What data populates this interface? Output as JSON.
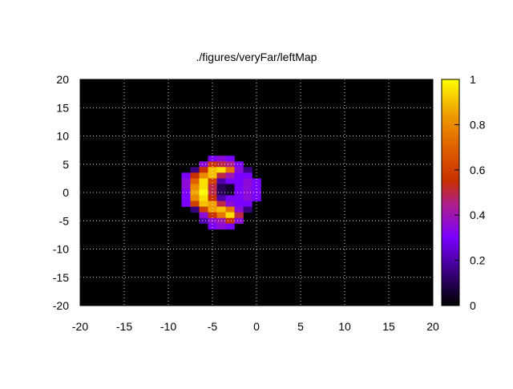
{
  "chart_data": {
    "type": "heatmap",
    "title": "./figures/veryFar/leftMap",
    "xlabel": "",
    "ylabel": "",
    "xlim": [
      -20,
      20
    ],
    "ylim": [
      -20,
      20
    ],
    "x_ticks": [
      -20,
      -15,
      -10,
      -5,
      0,
      5,
      10,
      15,
      20
    ],
    "y_ticks": [
      -20,
      -15,
      -10,
      -5,
      0,
      5,
      10,
      15,
      20
    ],
    "cell_size": 1,
    "grid": true,
    "background_value": 0,
    "colorbar": {
      "range": [
        0,
        1
      ],
      "ticks": [
        0,
        0.2,
        0.4,
        0.6,
        0.8,
        1
      ],
      "tick_labels": [
        "0",
        "0.2",
        "0.4",
        "0.6",
        "0.8",
        "1"
      ],
      "palette_stops": [
        {
          "v": 0.0,
          "color": "#000000"
        },
        {
          "v": 0.15,
          "color": "#3a0080"
        },
        {
          "v": 0.3,
          "color": "#7a00ff"
        },
        {
          "v": 0.45,
          "color": "#b0208a"
        },
        {
          "v": 0.55,
          "color": "#c83000"
        },
        {
          "v": 0.7,
          "color": "#e06000"
        },
        {
          "v": 0.85,
          "color": "#f0a000"
        },
        {
          "v": 1.0,
          "color": "#ffff00"
        }
      ]
    },
    "cells": [
      {
        "x": -5,
        "y": 6,
        "v": 0.3
      },
      {
        "x": -4,
        "y": 6,
        "v": 0.35
      },
      {
        "x": -3,
        "y": 6,
        "v": 0.3
      },
      {
        "x": -6,
        "y": 5,
        "v": 0.35
      },
      {
        "x": -5,
        "y": 5,
        "v": 0.55
      },
      {
        "x": -4,
        "y": 5,
        "v": 0.5
      },
      {
        "x": -3,
        "y": 5,
        "v": 0.45
      },
      {
        "x": -2,
        "y": 5,
        "v": 0.3
      },
      {
        "x": -7,
        "y": 4,
        "v": 0.15
      },
      {
        "x": -6,
        "y": 4,
        "v": 0.55
      },
      {
        "x": -5,
        "y": 4,
        "v": 0.9
      },
      {
        "x": -4,
        "y": 4,
        "v": 0.95
      },
      {
        "x": -3,
        "y": 4,
        "v": 0.75
      },
      {
        "x": -2,
        "y": 4,
        "v": 0.35
      },
      {
        "x": -1,
        "y": 4,
        "v": 0.15
      },
      {
        "x": -8,
        "y": 3,
        "v": 0.3
      },
      {
        "x": -7,
        "y": 3,
        "v": 0.55
      },
      {
        "x": -6,
        "y": 3,
        "v": 0.8
      },
      {
        "x": -5,
        "y": 3,
        "v": 0.9
      },
      {
        "x": -4,
        "y": 3,
        "v": 0.5
      },
      {
        "x": -3,
        "y": 3,
        "v": 0.4
      },
      {
        "x": -2,
        "y": 3,
        "v": 0.3
      },
      {
        "x": -1,
        "y": 3,
        "v": 0.3
      },
      {
        "x": -8,
        "y": 2,
        "v": 0.35
      },
      {
        "x": -7,
        "y": 2,
        "v": 0.7
      },
      {
        "x": -6,
        "y": 2,
        "v": 0.95
      },
      {
        "x": -5,
        "y": 2,
        "v": 0.6
      },
      {
        "x": -4,
        "y": 2,
        "v": 0.2
      },
      {
        "x": -3,
        "y": 2,
        "v": 0.3
      },
      {
        "x": -2,
        "y": 2,
        "v": 0.3
      },
      {
        "x": -1,
        "y": 2,
        "v": 0.35
      },
      {
        "x": 0,
        "y": 2,
        "v": 0.3
      },
      {
        "x": -8,
        "y": 1,
        "v": 0.35
      },
      {
        "x": -7,
        "y": 1,
        "v": 0.8
      },
      {
        "x": -6,
        "y": 1,
        "v": 0.95
      },
      {
        "x": -5,
        "y": 1,
        "v": 0.5
      },
      {
        "x": -4,
        "y": 1,
        "v": 0.1
      },
      {
        "x": -3,
        "y": 1,
        "v": 0.05
      },
      {
        "x": -2,
        "y": 1,
        "v": 0.3
      },
      {
        "x": -1,
        "y": 1,
        "v": 0.35
      },
      {
        "x": 0,
        "y": 1,
        "v": 0.3
      },
      {
        "x": -8,
        "y": 0,
        "v": 0.3
      },
      {
        "x": -7,
        "y": 0,
        "v": 0.85
      },
      {
        "x": -6,
        "y": 0,
        "v": 1.0
      },
      {
        "x": -5,
        "y": 0,
        "v": 0.5
      },
      {
        "x": -4,
        "y": 0,
        "v": 0.1
      },
      {
        "x": -3,
        "y": 0,
        "v": 0.05
      },
      {
        "x": -2,
        "y": 0,
        "v": 0.3
      },
      {
        "x": -1,
        "y": 0,
        "v": 0.35
      },
      {
        "x": 0,
        "y": 0,
        "v": 0.3
      },
      {
        "x": -8,
        "y": -1,
        "v": 0.3
      },
      {
        "x": -7,
        "y": -1,
        "v": 0.8
      },
      {
        "x": -6,
        "y": -1,
        "v": 0.95
      },
      {
        "x": -5,
        "y": -1,
        "v": 0.55
      },
      {
        "x": -4,
        "y": -1,
        "v": 0.2
      },
      {
        "x": -3,
        "y": -1,
        "v": 0.3
      },
      {
        "x": -2,
        "y": -1,
        "v": 0.3
      },
      {
        "x": -1,
        "y": -1,
        "v": 0.35
      },
      {
        "x": 0,
        "y": -1,
        "v": 0.3
      },
      {
        "x": -8,
        "y": -2,
        "v": 0.3
      },
      {
        "x": -7,
        "y": -2,
        "v": 0.6
      },
      {
        "x": -6,
        "y": -2,
        "v": 0.9
      },
      {
        "x": -5,
        "y": -2,
        "v": 0.85
      },
      {
        "x": -4,
        "y": -2,
        "v": 0.5
      },
      {
        "x": -3,
        "y": -2,
        "v": 0.35
      },
      {
        "x": -2,
        "y": -2,
        "v": 0.3
      },
      {
        "x": -1,
        "y": -2,
        "v": 0.3
      },
      {
        "x": -7,
        "y": -3,
        "v": 0.15
      },
      {
        "x": -6,
        "y": -3,
        "v": 0.6
      },
      {
        "x": -5,
        "y": -3,
        "v": 0.85
      },
      {
        "x": -4,
        "y": -3,
        "v": 0.9
      },
      {
        "x": -3,
        "y": -3,
        "v": 0.75
      },
      {
        "x": -2,
        "y": -3,
        "v": 0.35
      },
      {
        "x": -1,
        "y": -3,
        "v": 0.15
      },
      {
        "x": -6,
        "y": -4,
        "v": 0.35
      },
      {
        "x": -5,
        "y": -4,
        "v": 0.55
      },
      {
        "x": -4,
        "y": -4,
        "v": 0.75
      },
      {
        "x": -3,
        "y": -4,
        "v": 0.95
      },
      {
        "x": -2,
        "y": -4,
        "v": 0.5
      },
      {
        "x": -6,
        "y": -5,
        "v": 0.2
      },
      {
        "x": -5,
        "y": -5,
        "v": 0.35
      },
      {
        "x": -4,
        "y": -5,
        "v": 0.4
      },
      {
        "x": -3,
        "y": -5,
        "v": 0.55
      },
      {
        "x": -2,
        "y": -5,
        "v": 0.35
      },
      {
        "x": -5,
        "y": -6,
        "v": 0.3
      },
      {
        "x": -4,
        "y": -6,
        "v": 0.35
      },
      {
        "x": -3,
        "y": -6,
        "v": 0.3
      }
    ]
  }
}
